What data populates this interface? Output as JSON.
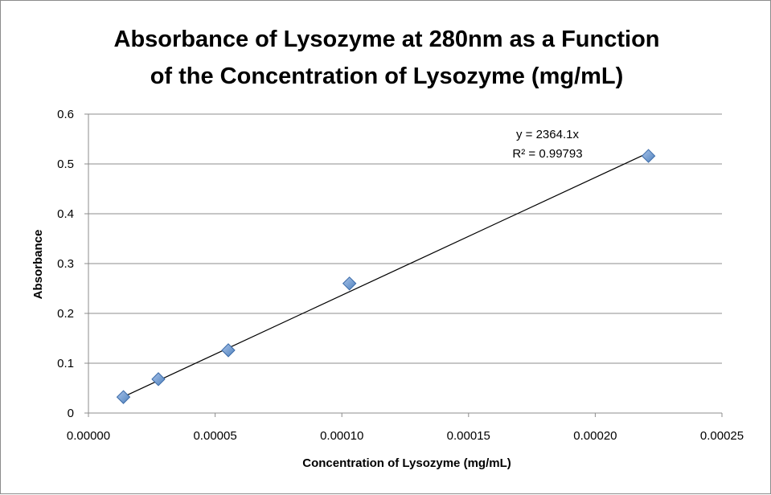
{
  "chart_data": {
    "type": "scatter",
    "title_lines": [
      "Absorbance of Lysozyme at 280nm as a Function",
      "of the Concentration of Lysozyme (mg/mL)"
    ],
    "xlabel": "Concentration of Lysozyme (mg/mL)",
    "ylabel": "Absorbance",
    "xlim": [
      0,
      0.00025
    ],
    "ylim": [
      0,
      0.6
    ],
    "x_ticks": [
      0,
      5e-05,
      0.0001,
      0.00015,
      0.0002,
      0.00025
    ],
    "x_tick_labels": [
      "0.00000",
      "0.00005",
      "0.00010",
      "0.00015",
      "0.00020",
      "0.00025"
    ],
    "y_ticks": [
      0,
      0.1,
      0.2,
      0.3,
      0.4,
      0.5,
      0.6
    ],
    "y_tick_labels": [
      "0",
      "0.1",
      "0.2",
      "0.3",
      "0.4",
      "0.5",
      "0.6"
    ],
    "grid": "horizontal",
    "series": [
      {
        "marker": "diamond",
        "color": "#4f81bd",
        "x": [
          1.38e-05,
          2.76e-05,
          5.52e-05,
          0.000103,
          0.000221
        ],
        "y": [
          0.032,
          0.068,
          0.126,
          0.26,
          0.516
        ]
      }
    ],
    "trendline": {
      "type": "linear-through-origin",
      "slope": 2364.1,
      "x_range": [
        1.38e-05,
        0.000221
      ],
      "equation": "y = 2364.1x",
      "r_squared": "R² = 0.99793",
      "color": "#000000"
    }
  }
}
